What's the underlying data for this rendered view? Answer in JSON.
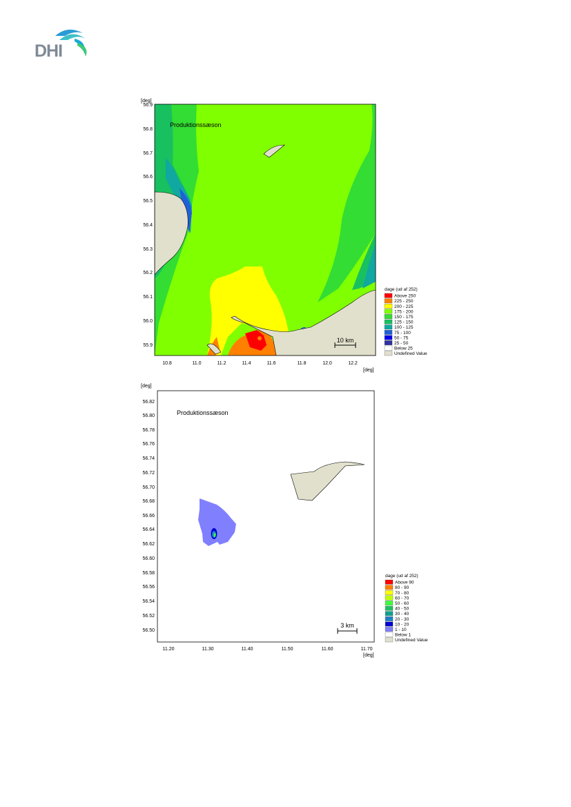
{
  "logo": {
    "text": "DHI"
  },
  "colors": {
    "land": "#e1e0cc",
    "above250": "#ff0000",
    "c225_250": "#ff8000",
    "c200_225": "#ffff00",
    "c175_200": "#80ff00",
    "c150_175": "#33dd33",
    "c125_150": "#18c060",
    "c100_125": "#10a8a0",
    "c75_100": "#2060d8",
    "c50_75": "#0000e8",
    "c25_50": "#3030a0",
    "below": "#ffffff",
    "m_above90": "#ff0000",
    "m80_90": "#ff8000",
    "m70_80": "#ffff00",
    "m60_70": "#c0ff00",
    "m50_60": "#40ff40",
    "m40_50": "#20c060",
    "m30_40": "#10a090",
    "m20_30": "#2080c8",
    "m10_20": "#0000d0",
    "m1_10": "#8080ff"
  },
  "map1": {
    "unit_top": "[deg]",
    "unit_bottom": "[deg]",
    "title": "Produktionssæson",
    "y_ticks": [
      "56.9",
      "56.8",
      "56.7",
      "56.6",
      "56.5",
      "56.4",
      "56.3",
      "56.2",
      "56.1",
      "56.0",
      "55.9"
    ],
    "x_ticks": [
      "10.8",
      "11.0",
      "11.2",
      "11.4",
      "11.6",
      "11.8",
      "12.0",
      "12.2"
    ],
    "scale_label": "10 km",
    "legend": {
      "title": "dage (ud af 252)",
      "items": [
        {
          "label": "Above 250",
          "color": "#ff0000"
        },
        {
          "label": "225 - 250",
          "color": "#ff8000"
        },
        {
          "label": "200 - 225",
          "color": "#ffff00"
        },
        {
          "label": "175 - 200",
          "color": "#80ff00"
        },
        {
          "label": "150 - 175",
          "color": "#33dd33"
        },
        {
          "label": "125 - 150",
          "color": "#18c060"
        },
        {
          "label": "100 - 125",
          "color": "#10a8a0"
        },
        {
          "label": "75 - 100",
          "color": "#2060d8"
        },
        {
          "label": "50 -  75",
          "color": "#0000e8"
        },
        {
          "label": "25 -  50",
          "color": "#3030a0"
        },
        {
          "label": "Below  25",
          "color": "#ffffff"
        },
        {
          "label": "Undefined Value",
          "color": "#e1e0cc"
        }
      ]
    }
  },
  "map2": {
    "unit_top": "[deg]",
    "unit_bottom": "[deg]",
    "title": "Produktionssæson",
    "y_ticks": [
      "56.82",
      "56.80",
      "56.78",
      "56.76",
      "56.74",
      "56.72",
      "56.70",
      "56.68",
      "56.66",
      "56.64",
      "56.62",
      "56.60",
      "56.58",
      "56.56",
      "56.54",
      "56.52",
      "56.50"
    ],
    "x_ticks": [
      "11.20",
      "11.30",
      "11.40",
      "11.50",
      "11.60",
      "11.70"
    ],
    "scale_label": "3 km",
    "legend": {
      "title": "dage (ud af 252)",
      "items": [
        {
          "label": "Above 90",
          "color": "#ff0000"
        },
        {
          "label": "80 - 90",
          "color": "#ff8000"
        },
        {
          "label": "70 - 80",
          "color": "#ffff00"
        },
        {
          "label": "60 - 70",
          "color": "#c0ff00"
        },
        {
          "label": "50 - 60",
          "color": "#40ff40"
        },
        {
          "label": "40 - 50",
          "color": "#20c060"
        },
        {
          "label": "30 - 40",
          "color": "#10a090"
        },
        {
          "label": "20 - 30",
          "color": "#2080c8"
        },
        {
          "label": "10 - 20",
          "color": "#0000d0"
        },
        {
          "label": "1 - 10",
          "color": "#8080ff"
        },
        {
          "label": "Below   1",
          "color": "#ffffff"
        },
        {
          "label": "Undefined Value",
          "color": "#e1e0cc"
        }
      ]
    }
  }
}
